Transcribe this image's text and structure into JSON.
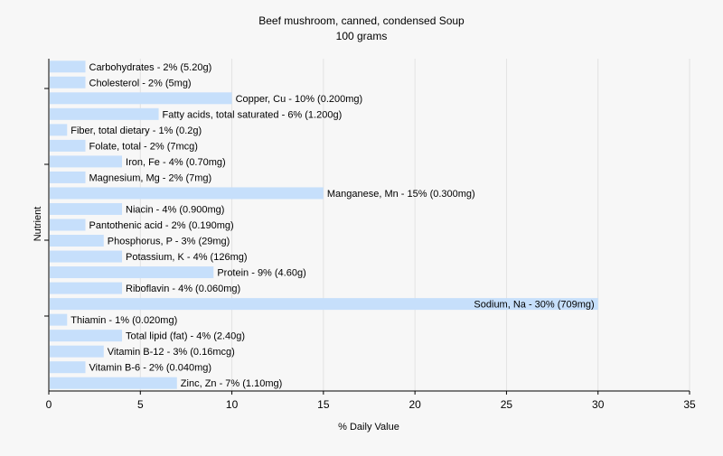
{
  "chart_data": {
    "type": "bar",
    "orientation": "horizontal",
    "title": "Beef mushroom, canned, condensed Soup",
    "subtitle": "100 grams",
    "xlabel": "% Daily Value",
    "ylabel": "Nutrient",
    "xlim": [
      0,
      35
    ],
    "xticks": [
      0,
      5,
      10,
      15,
      20,
      25,
      30,
      35
    ],
    "grid": true,
    "legend": "none",
    "colors": {
      "bar": "#c6dffb",
      "grid": "#e2e2e2",
      "axis": "#000000",
      "background": "#f7f7f7"
    },
    "categories": [
      "Carbohydrates",
      "Cholesterol",
      "Copper, Cu",
      "Fatty acids, total saturated",
      "Fiber, total dietary",
      "Folate, total",
      "Iron, Fe",
      "Magnesium, Mg",
      "Manganese, Mn",
      "Niacin",
      "Pantothenic acid",
      "Phosphorus, P",
      "Potassium, K",
      "Protein",
      "Riboflavin",
      "Sodium, Na",
      "Thiamin",
      "Total lipid (fat)",
      "Vitamin B-12",
      "Vitamin B-6",
      "Zinc, Zn"
    ],
    "values": [
      2,
      2,
      10,
      6,
      1,
      2,
      4,
      2,
      15,
      4,
      2,
      3,
      4,
      9,
      4,
      30,
      1,
      4,
      3,
      2,
      7
    ],
    "data_labels": [
      "Carbohydrates - 2% (5.20g)",
      "Cholesterol - 2% (5mg)",
      "Copper, Cu - 10% (0.200mg)",
      "Fatty acids, total saturated - 6% (1.200g)",
      "Fiber, total dietary - 1% (0.2g)",
      "Folate, total - 2% (7mcg)",
      "Iron, Fe - 4% (0.70mg)",
      "Magnesium, Mg - 2% (7mg)",
      "Manganese, Mn - 15% (0.300mg)",
      "Niacin - 4% (0.900mg)",
      "Pantothenic acid - 2% (0.190mg)",
      "Phosphorus, P - 3% (29mg)",
      "Potassium, K - 4% (126mg)",
      "Protein - 9% (4.60g)",
      "Riboflavin - 4% (0.060mg)",
      "Sodium, Na - 30% (709mg)",
      "Thiamin - 1% (0.020mg)",
      "Total lipid (fat) - 4% (2.40g)",
      "Vitamin B-12 - 3% (0.16mcg)",
      "Vitamin B-6 - 2% (0.040mg)",
      "Zinc, Zn - 7% (1.10mg)"
    ]
  }
}
